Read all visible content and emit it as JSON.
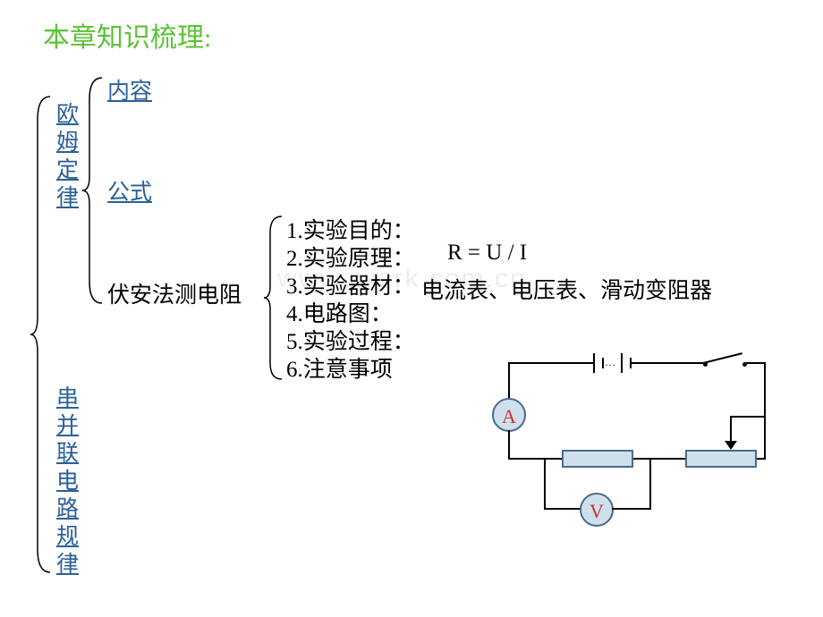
{
  "title": "本章知识梳理:",
  "watermark": "www.zxzrk.com.cn",
  "left_items": {
    "ohm_law": "欧\n姆\n定\n律",
    "series_parallel": "串\n并\n联\n电\n路\n规\n律"
  },
  "branches": {
    "content": "内容",
    "formula": "公式",
    "voltammetry": "伏安法测电阻"
  },
  "experiment_items": {
    "i1": "1.实验目的：",
    "i2": "2.实验原理：",
    "i2_val": "R = U / I",
    "i3": "3.实验器材：",
    "i3_val": "电流表、电压表、滑动变阻器",
    "i4": "4.电路图：",
    "i5": "5.实验过程：",
    "i6": "6.注意事项"
  },
  "circuit": {
    "meter_A": "A",
    "meter_V": "V",
    "colors": {
      "fill": "#cfe0ed",
      "stroke": "#4a6a8a",
      "meter_text": "#cc3333",
      "wire": "#000000"
    }
  },
  "colors": {
    "title": "#5bc236",
    "link": "#2a6099",
    "text": "#000000",
    "watermark": "rgba(0,0,0,0.07)",
    "background": "#ffffff"
  },
  "fonts": {
    "title_size": 30,
    "body_size": 25
  }
}
